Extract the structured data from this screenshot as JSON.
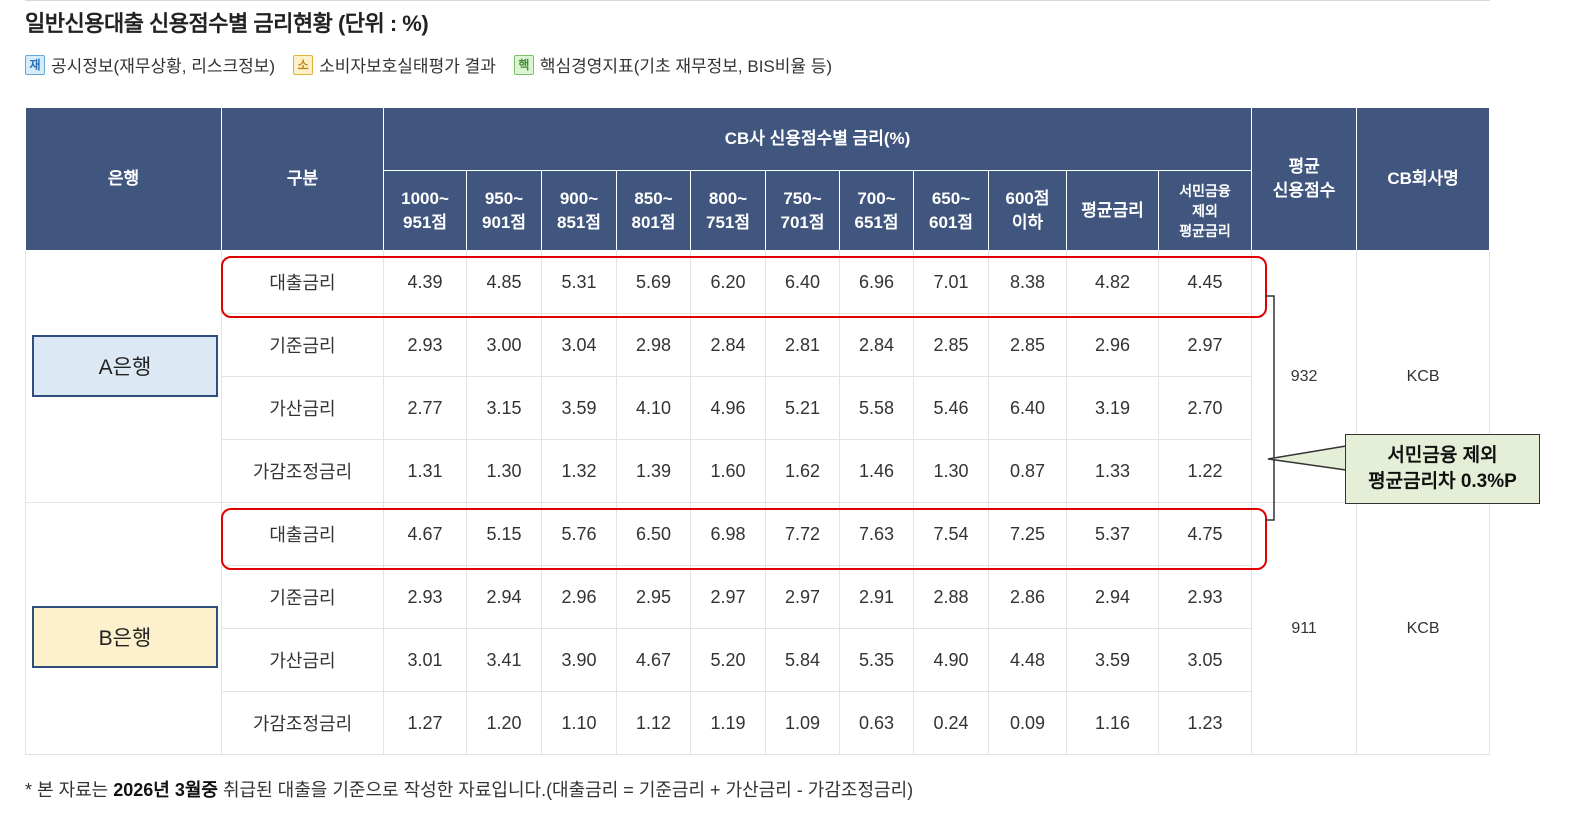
{
  "title": "일반신용대출 신용점수별 금리현황 (단위 : %)",
  "legend": [
    {
      "badge": "재",
      "label": "공시정보(재무상황, 리스크정보)",
      "color": "#2a72b5"
    },
    {
      "badge": "소",
      "label": "소비자보호실태평가 결과",
      "color": "#c48612"
    },
    {
      "badge": "핵",
      "label": "핵심경영지표(기초 재무정보, BIS비율 등)",
      "color": "#3e8f2e"
    }
  ],
  "table": {
    "header": {
      "bank": "은행",
      "category": "구분",
      "group": "CB사 신용점수별 금리(%)",
      "avg_score": [
        "평균",
        "신용점수"
      ],
      "cb_name": "CB회사명",
      "columns": [
        [
          "1000~",
          "951점"
        ],
        [
          "950~",
          "901점"
        ],
        [
          "900~",
          "851점"
        ],
        [
          "850~",
          "801점"
        ],
        [
          "800~",
          "751점"
        ],
        [
          "750~",
          "701점"
        ],
        [
          "700~",
          "651점"
        ],
        [
          "650~",
          "601점"
        ],
        [
          "600점",
          "이하"
        ],
        [
          "평균금리"
        ],
        [
          "서민금융",
          "제외",
          "평균금리"
        ]
      ]
    },
    "banks": [
      {
        "name": "A은행",
        "avg_score": "932",
        "cb": "KCB",
        "rows": [
          {
            "label": "대출금리",
            "values": [
              "4.39",
              "4.85",
              "5.31",
              "5.69",
              "6.20",
              "6.40",
              "6.96",
              "7.01",
              "8.38",
              "4.82",
              "4.45"
            ]
          },
          {
            "label": "기준금리",
            "values": [
              "2.93",
              "3.00",
              "3.04",
              "2.98",
              "2.84",
              "2.81",
              "2.84",
              "2.85",
              "2.85",
              "2.96",
              "2.97"
            ]
          },
          {
            "label": "가산금리",
            "values": [
              "2.77",
              "3.15",
              "3.59",
              "4.10",
              "4.96",
              "5.21",
              "5.58",
              "5.46",
              "6.40",
              "3.19",
              "2.70"
            ]
          },
          {
            "label": "가감조정금리",
            "values": [
              "1.31",
              "1.30",
              "1.32",
              "1.39",
              "1.60",
              "1.62",
              "1.46",
              "1.30",
              "0.87",
              "1.33",
              "1.22"
            ]
          }
        ]
      },
      {
        "name": "B은행",
        "avg_score": "911",
        "cb": "KCB",
        "rows": [
          {
            "label": "대출금리",
            "values": [
              "4.67",
              "5.15",
              "5.76",
              "6.50",
              "6.98",
              "7.72",
              "7.63",
              "7.54",
              "7.25",
              "5.37",
              "4.75"
            ]
          },
          {
            "label": "기준금리",
            "values": [
              "2.93",
              "2.94",
              "2.96",
              "2.95",
              "2.97",
              "2.97",
              "2.91",
              "2.88",
              "2.86",
              "2.94",
              "2.93"
            ]
          },
          {
            "label": "가산금리",
            "values": [
              "3.01",
              "3.41",
              "3.90",
              "4.67",
              "5.20",
              "5.84",
              "5.35",
              "4.90",
              "4.48",
              "3.59",
              "3.05"
            ]
          },
          {
            "label": "가감조정금리",
            "values": [
              "1.27",
              "1.20",
              "1.10",
              "1.12",
              "1.19",
              "1.09",
              "0.63",
              "0.24",
              "0.09",
              "1.16",
              "1.23"
            ]
          }
        ]
      }
    ]
  },
  "callout": {
    "line1": "서민금융 제외",
    "line2": "평균금리차 0.3%P"
  },
  "footnote": {
    "prefix": "* 본 자료는 ",
    "bold": "2026년 3월중",
    "suffix": " 취급된 대출을 기준으로 작성한 자료입니다.(대출금리 = 기준금리 + 가산금리 - 가감조정금리)"
  },
  "colors": {
    "header_bg": "#41567e",
    "highlight": "#e00000",
    "bank_a": "#dce9f5",
    "bank_b": "#fdf0cc",
    "callout_bg": "#e5efd8"
  }
}
